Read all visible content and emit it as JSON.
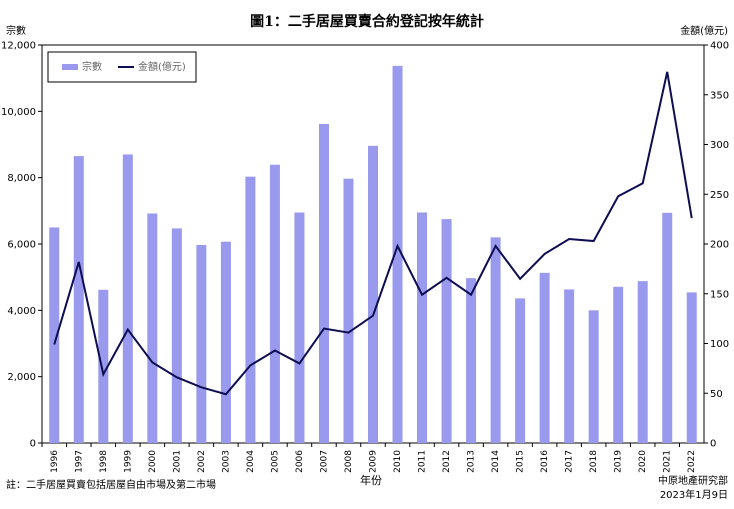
{
  "chart_data": {
    "type": "bar+line",
    "title": "圖1：二手居屋買賣合約登記按年統計",
    "ylabel_left": "宗數",
    "ylabel_right": "金額(億元)",
    "xlabel": "年份",
    "ylim_left": [
      0,
      12000
    ],
    "ylim_right": [
      0,
      400
    ],
    "yticks_left": [
      "0",
      "2,000",
      "4,000",
      "6,000",
      "8,000",
      "10,000",
      "12,000"
    ],
    "yticks_right": [
      "0",
      "50",
      "100",
      "150",
      "200",
      "250",
      "300",
      "350",
      "400"
    ],
    "categories": [
      "1996",
      "1997",
      "1998",
      "1999",
      "2000",
      "2001",
      "2002",
      "2003",
      "2004",
      "2005",
      "2006",
      "2007",
      "2008",
      "2009",
      "2010",
      "2011",
      "2012",
      "2013",
      "2014",
      "2015",
      "2016",
      "2017",
      "2018",
      "2019",
      "2020",
      "2021",
      "2022"
    ],
    "legend": {
      "placement": "top-left"
    },
    "series": [
      {
        "name": "宗數",
        "kind": "bar",
        "axis": "left",
        "color": "#9999ee",
        "values": [
          6500,
          8650,
          4620,
          8700,
          6920,
          6470,
          5970,
          6070,
          8030,
          8390,
          6950,
          9620,
          7970,
          8960,
          11370,
          6950,
          6750,
          4970,
          6200,
          4360,
          5130,
          4630,
          4000,
          4710,
          4880,
          6940,
          4540
        ]
      },
      {
        "name": "金額(億元)",
        "kind": "line",
        "axis": "right",
        "color": "#0d0d52",
        "values": [
          99,
          182,
          69,
          114,
          81,
          66,
          56,
          49,
          78,
          93,
          80,
          115,
          111,
          128,
          198,
          149,
          166,
          149,
          198,
          165,
          190,
          205,
          203,
          248,
          261,
          373,
          226
        ]
      }
    ]
  },
  "footer": {
    "note": "註：二手居屋買賣包括居屋自由市場及第二市場",
    "source": "中原地產研究部",
    "date": "2023年1月9日"
  }
}
